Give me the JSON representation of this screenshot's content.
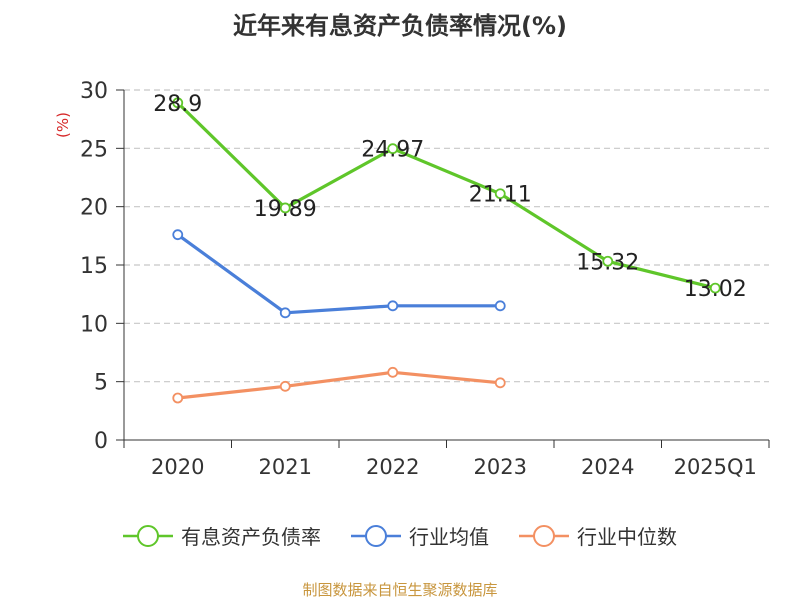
{
  "chart_data": {
    "type": "line",
    "title": "近年来有息资产负债率情况(%)",
    "ylabel": "(%)",
    "xlabel": "",
    "categories": [
      "2020",
      "2021",
      "2022",
      "2023",
      "2024",
      "2025Q1"
    ],
    "ylim": [
      0,
      30
    ],
    "yticks": [
      0,
      5,
      10,
      15,
      20,
      25,
      30
    ],
    "grid": true,
    "legend_position": "bottom",
    "series": [
      {
        "name": "有息资产负债率",
        "color": "#5fc62a",
        "values": [
          28.9,
          19.89,
          24.97,
          21.11,
          15.32,
          13.02
        ],
        "labels": [
          "28.9",
          "19.89",
          "24.97",
          "21.11",
          "15.32",
          "13.02"
        ]
      },
      {
        "name": "行业均值",
        "color": "#4a7fd9",
        "values": [
          17.6,
          10.9,
          11.5,
          11.5,
          null,
          null
        ]
      },
      {
        "name": "行业中位数",
        "color": "#f39062",
        "values": [
          3.6,
          4.6,
          5.8,
          4.9,
          null,
          null
        ]
      }
    ]
  },
  "footer": {
    "source": "制图数据来自恒生聚源数据库"
  }
}
